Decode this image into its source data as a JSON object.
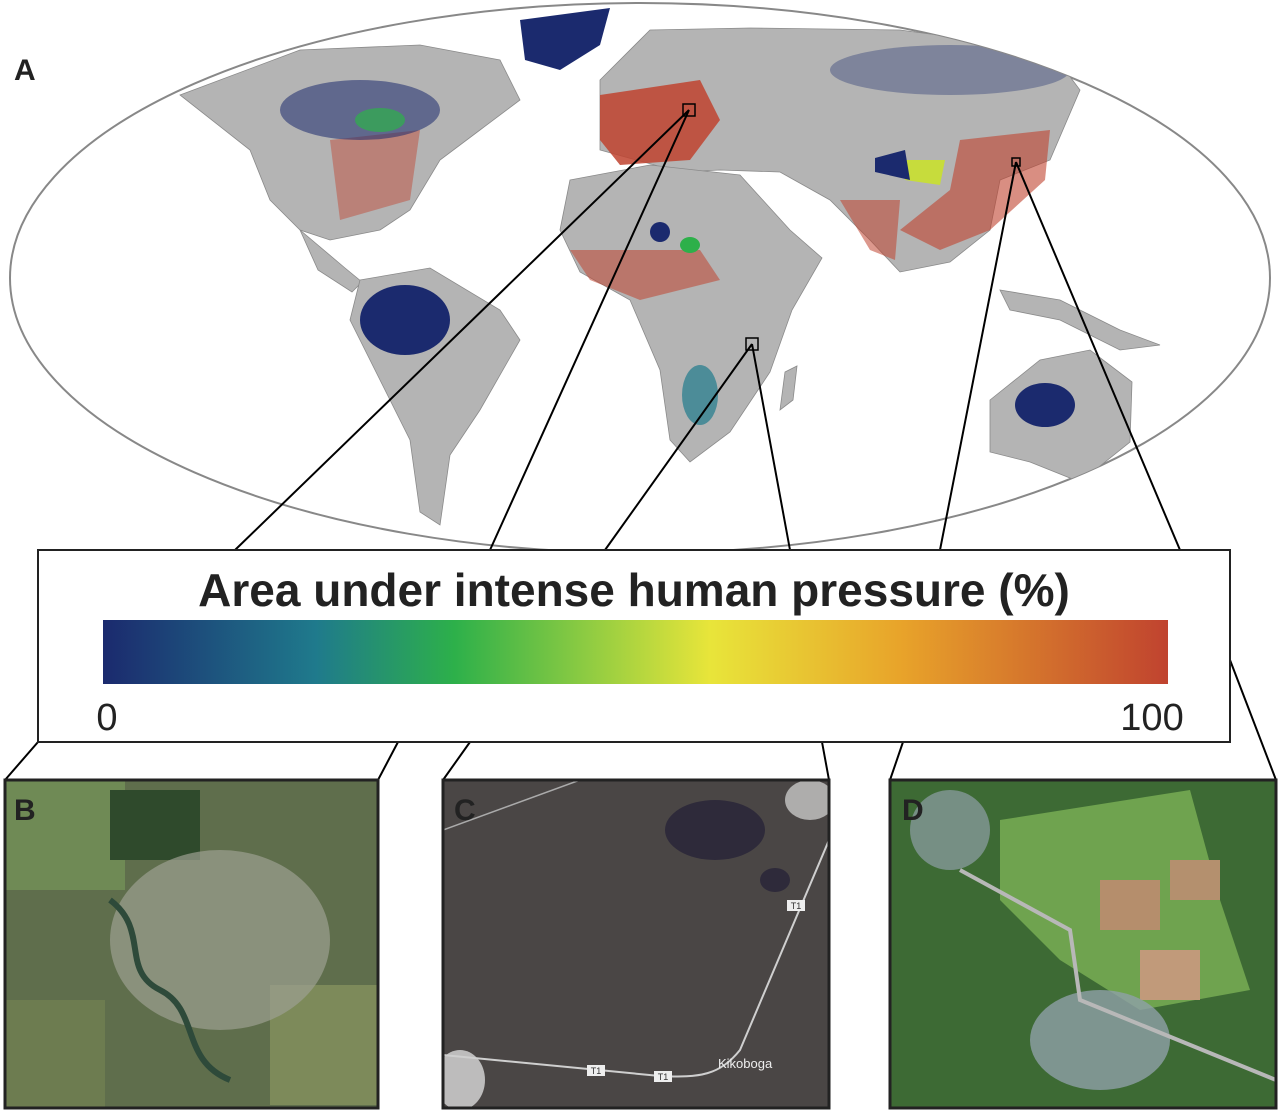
{
  "panels": {
    "a": {
      "letter": "A"
    },
    "b": {
      "letter": "B"
    },
    "c": {
      "letter": "C",
      "road_labels": [
        "T1",
        "T1",
        "T1"
      ],
      "place": "Kikoboga"
    },
    "d": {
      "letter": "D"
    }
  },
  "colorbar": {
    "title": "Area under intense human pressure (%)",
    "min": 0,
    "max": 100
  }
}
